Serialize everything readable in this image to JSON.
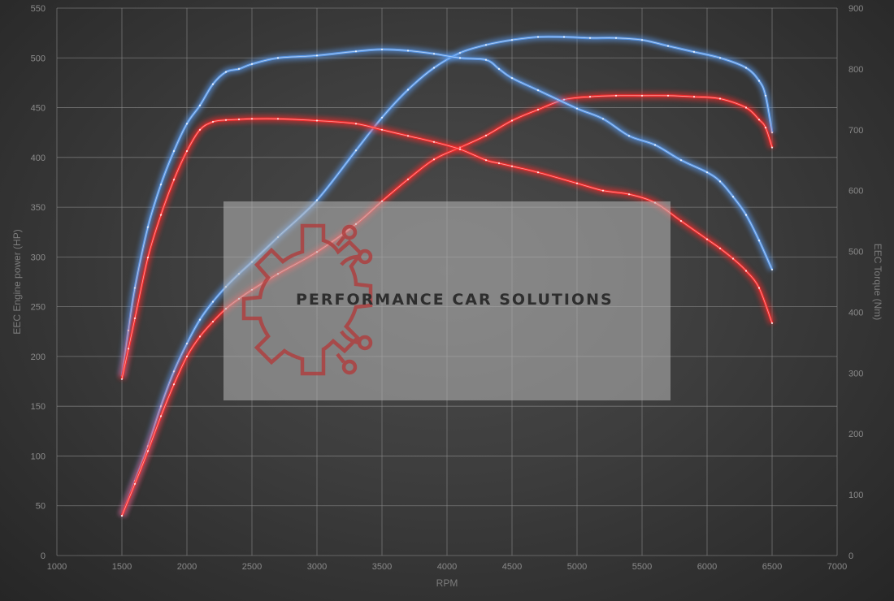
{
  "chart_data": {
    "type": "line",
    "xlabel": "RPM",
    "ylabel_left": "EEC Engine power (HP)",
    "ylabel_right": "EEC Torque (Nm)",
    "xlim": [
      1000,
      7000
    ],
    "ylim_left": [
      0,
      550
    ],
    "ylim_right": [
      0,
      900
    ],
    "x_ticks": [
      1000,
      1500,
      2000,
      2500,
      3000,
      3500,
      4000,
      4500,
      5000,
      5500,
      6000,
      6500,
      7000
    ],
    "y_left_ticks": [
      0,
      50,
      100,
      150,
      200,
      250,
      300,
      350,
      400,
      450,
      500,
      550
    ],
    "y_right_ticks": [
      0,
      100,
      200,
      300,
      400,
      500,
      600,
      700,
      800,
      900
    ],
    "grid": true,
    "legend": "none",
    "colors": {
      "blue": "#5b9cf0",
      "red": "#ff2a2a"
    },
    "series": [
      {
        "axis": "left",
        "color": "blue",
        "x": [
          1500,
          1600,
          1700,
          1800,
          1900,
          2000,
          2100,
          2200,
          2300,
          2400,
          2500,
          2700,
          3000,
          3300,
          3500,
          3700,
          3900,
          4100,
          4300,
          4500,
          4700,
          4900,
          5100,
          5300,
          5500,
          5700,
          5900,
          6100,
          6300,
          6400,
          6450,
          6500
        ],
        "values": [
          40,
          75,
          110,
          150,
          185,
          213,
          237,
          255,
          270,
          283,
          295,
          320,
          357,
          407,
          440,
          468,
          490,
          505,
          513,
          518,
          521,
          521,
          520,
          520,
          518,
          512,
          506,
          500,
          490,
          477,
          462,
          425
        ]
      },
      {
        "axis": "left",
        "color": "red",
        "x": [
          1500,
          1600,
          1700,
          1800,
          1900,
          2000,
          2100,
          2200,
          2300,
          2400,
          2500,
          2700,
          3000,
          3300,
          3500,
          3700,
          3900,
          4100,
          4300,
          4500,
          4700,
          4900,
          5100,
          5300,
          5500,
          5700,
          5900,
          6100,
          6300,
          6400,
          6450,
          6500
        ],
        "values": [
          40,
          72,
          105,
          140,
          172,
          200,
          220,
          235,
          248,
          258,
          267,
          283,
          305,
          333,
          356,
          378,
          398,
          410,
          422,
          437,
          448,
          458,
          461,
          462,
          462,
          462,
          461,
          459,
          450,
          438,
          430,
          410
        ]
      },
      {
        "axis": "right",
        "color": "blue",
        "x": [
          1500,
          1550,
          1600,
          1700,
          1800,
          1900,
          2000,
          2100,
          2200,
          2300,
          2400,
          2500,
          2700,
          3000,
          3300,
          3500,
          3700,
          3900,
          4100,
          4300,
          4400,
          4500,
          4700,
          5000,
          5200,
          5400,
          5600,
          5800,
          6000,
          6100,
          6200,
          6300,
          6400,
          6500
        ],
        "values": [
          295,
          370,
          440,
          540,
          610,
          665,
          710,
          740,
          775,
          795,
          800,
          808,
          818,
          822,
          829,
          832,
          830,
          825,
          818,
          815,
          800,
          785,
          765,
          735,
          718,
          690,
          675,
          650,
          630,
          615,
          590,
          560,
          518,
          470
        ]
      },
      {
        "axis": "right",
        "color": "red",
        "x": [
          1500,
          1550,
          1600,
          1700,
          1800,
          1900,
          2000,
          2100,
          2200,
          2300,
          2400,
          2500,
          2700,
          3000,
          3300,
          3500,
          3700,
          3900,
          4100,
          4300,
          4400,
          4500,
          4700,
          5000,
          5200,
          5400,
          5600,
          5800,
          6000,
          6100,
          6200,
          6300,
          6400,
          6500
        ],
        "values": [
          290,
          340,
          390,
          490,
          560,
          618,
          665,
          700,
          713,
          716,
          717,
          718,
          718,
          715,
          710,
          700,
          690,
          680,
          668,
          650,
          645,
          640,
          630,
          612,
          600,
          594,
          580,
          550,
          520,
          505,
          488,
          468,
          440,
          382
        ]
      }
    ]
  },
  "watermark": {
    "text": "PERFORMANCE CAR SOLUTIONS"
  }
}
